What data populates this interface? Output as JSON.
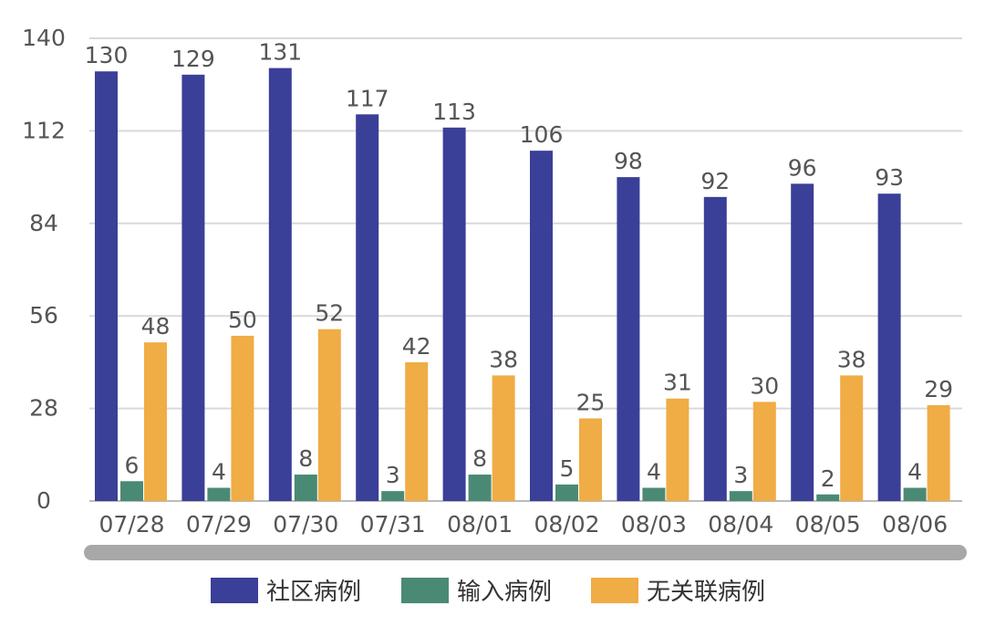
{
  "chart_data": {
    "type": "bar",
    "title": "",
    "xlabel": "",
    "ylabel": "",
    "ylim": [
      0,
      140
    ],
    "yticks": [
      0,
      28,
      56,
      84,
      112,
      140
    ],
    "grid": true,
    "legend_position": "bottom",
    "categories": [
      "07/28",
      "07/29",
      "07/30",
      "07/31",
      "08/01",
      "08/02",
      "08/03",
      "08/04",
      "08/05",
      "08/06"
    ],
    "series": [
      {
        "name": "社区病例",
        "color": "#3a3f98",
        "values": [
          130,
          129,
          131,
          117,
          113,
          106,
          98,
          92,
          96,
          93
        ]
      },
      {
        "name": "输入病例",
        "color": "#4a8a74",
        "values": [
          6,
          4,
          8,
          3,
          8,
          5,
          4,
          3,
          2,
          4
        ]
      },
      {
        "name": "无关联病例",
        "color": "#f0ac45",
        "values": [
          48,
          50,
          52,
          42,
          38,
          25,
          31,
          30,
          38,
          29
        ]
      }
    ]
  }
}
